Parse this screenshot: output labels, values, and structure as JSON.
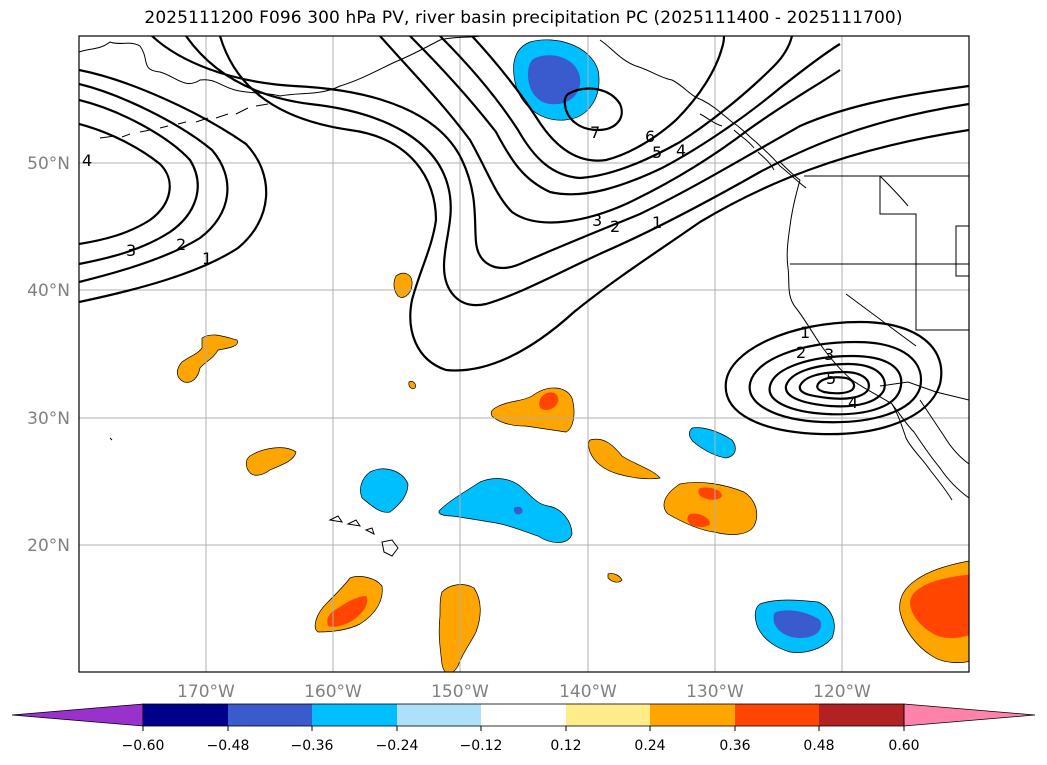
{
  "title": "2025111200 F096 300 hPa PV, river basin precipitation PC (2025111400 - 2025111700)",
  "map": {
    "lon_labels": [
      "170°W",
      "160°W",
      "150°W",
      "140°W",
      "130°W",
      "120°W"
    ],
    "lat_labels": [
      "50°N",
      "40°N",
      "30°N",
      "20°N"
    ],
    "contour_labels": [
      "4",
      "3",
      "2",
      "1",
      "7",
      "6",
      "5",
      "4",
      "3",
      "2",
      "1",
      "1",
      "2",
      "3",
      "5",
      "4"
    ]
  },
  "colorbar": {
    "ticks": [
      "−0.60",
      "−0.48",
      "−0.36",
      "−0.24",
      "−0.12",
      "0.12",
      "0.24",
      "0.36",
      "0.48",
      "0.60"
    ],
    "colors": [
      "#9932CC",
      "#00008B",
      "#3A5BCD",
      "#00BFFF",
      "#ADE1FA",
      "#FFFFFF",
      "#FFEC8B",
      "#FFA500",
      "#FF4500",
      "#B22222",
      "#FF82AB"
    ]
  }
}
